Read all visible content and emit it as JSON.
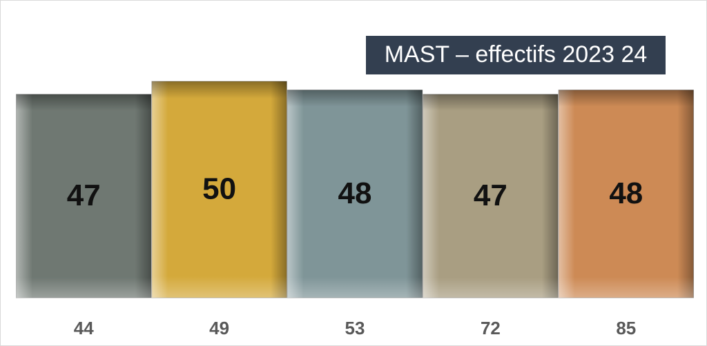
{
  "chart_data": {
    "type": "bar",
    "title": "MAST – effectifs 2023 24",
    "categories": [
      "44",
      "49",
      "53",
      "72",
      "85"
    ],
    "series": [
      {
        "values": [
          47,
          50,
          48,
          47,
          48
        ]
      }
    ],
    "colors": [
      "#6f7872",
      "#d4a93b",
      "#7f9598",
      "#a99e82",
      "#cd8a55"
    ]
  }
}
